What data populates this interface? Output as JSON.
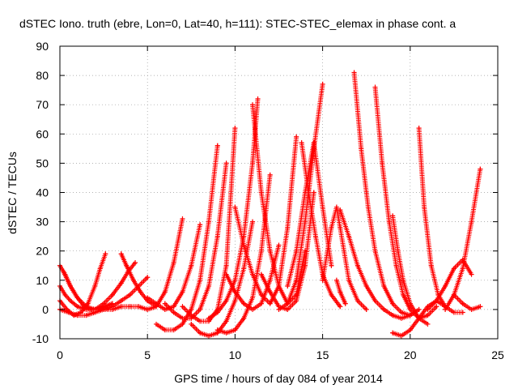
{
  "chart_data": {
    "type": "scatter",
    "title": "dSTEC Iono. truth (ebre, Lon=0, Lat=40, h=111): STEC-STEC_elemax in phase cont. a",
    "xlabel": "GPS time / hours of day 084 of year 2014",
    "ylabel": "dSTEC  / TECUs",
    "xlim": [
      0,
      25
    ],
    "ylim": [
      -10,
      90
    ],
    "x_ticks": [
      "0",
      "5",
      "10",
      "15",
      "20",
      "25"
    ],
    "y_ticks": [
      "-10",
      "0",
      "10",
      "20",
      "30",
      "40",
      "50",
      "60",
      "70",
      "80",
      "90"
    ],
    "grid": true,
    "legend": "none",
    "marker": "plus",
    "color": "#ff0000",
    "series": [
      {
        "x": [
          0.0,
          0.4,
          0.8,
          1.2,
          1.6,
          2.0,
          2.3,
          2.6
        ],
        "y": [
          3,
          0,
          -2,
          -1,
          2,
          8,
          14,
          19
        ]
      },
      {
        "x": [
          0.0,
          0.3,
          0.6,
          1.0,
          1.4,
          1.8,
          2.2,
          2.6,
          3.0
        ],
        "y": [
          15,
          12,
          8,
          4,
          1,
          0,
          0,
          1,
          2
        ]
      },
      {
        "x": [
          0.0,
          0.3,
          0.6,
          1.0,
          1.5,
          2.0,
          2.5,
          3.0
        ],
        "y": [
          8,
          5,
          3,
          1,
          0,
          0,
          1,
          2
        ]
      },
      {
        "x": [
          0.2,
          0.6,
          1.0,
          1.5,
          2.0,
          2.5,
          3.0,
          3.5,
          4.0
        ],
        "y": [
          13,
          8,
          4,
          1,
          0,
          0,
          0,
          1,
          1
        ]
      },
      {
        "x": [
          0.0,
          0.5,
          1.0,
          1.5,
          2.0,
          2.5,
          3.0,
          3.5,
          4.0,
          4.5,
          5.0
        ],
        "y": [
          0,
          -1,
          -2,
          -2,
          -1,
          0,
          1,
          3,
          5,
          8,
          11
        ]
      },
      {
        "x": [
          2.0,
          2.5,
          3.0,
          3.5,
          3.9,
          4.3
        ],
        "y": [
          0,
          2,
          5,
          9,
          13,
          16
        ]
      },
      {
        "x": [
          3.5,
          3.8,
          4.2,
          4.6,
          5.0,
          5.5
        ],
        "y": [
          19,
          15,
          10,
          6,
          3,
          1
        ]
      },
      {
        "x": [
          4.0,
          4.5,
          5.0,
          5.5,
          6.0,
          6.5,
          7.0
        ],
        "y": [
          1,
          1,
          0,
          1,
          6,
          16,
          31
        ]
      },
      {
        "x": [
          5.0,
          5.5,
          6.0,
          6.5,
          7.0,
          7.5,
          8.0
        ],
        "y": [
          4,
          2,
          0,
          1,
          6,
          15,
          29
        ]
      },
      {
        "x": [
          5.5,
          6.0,
          6.5,
          7.0,
          7.5,
          8.0,
          8.5,
          9.0
        ],
        "y": [
          -5,
          -7,
          -7,
          -5,
          0,
          10,
          30,
          56
        ]
      },
      {
        "x": [
          6.0,
          6.5,
          7.0,
          7.5,
          8.0,
          8.5,
          9.0,
          9.5
        ],
        "y": [
          2,
          -1,
          -3,
          -3,
          0,
          8,
          25,
          50
        ]
      },
      {
        "x": [
          7.0,
          7.5,
          8.0,
          8.5,
          9.0,
          9.5,
          10.0
        ],
        "y": [
          1,
          -2,
          -4,
          -4,
          0,
          15,
          62
        ]
      },
      {
        "x": [
          7.5,
          8.0,
          8.5,
          9.0,
          9.5,
          10.0,
          10.5,
          11.0
        ],
        "y": [
          -5,
          -8,
          -9,
          -8,
          -4,
          3,
          14,
          30
        ]
      },
      {
        "x": [
          8.5,
          9.0,
          9.5,
          10.0,
          10.5,
          11.0,
          11.3
        ],
        "y": [
          -3,
          -1,
          3,
          10,
          25,
          50,
          72
        ]
      },
      {
        "x": [
          9.0,
          9.5,
          10.0,
          10.5,
          11.0,
          11.5,
          12.0
        ],
        "y": [
          -7,
          -8,
          -7,
          -3,
          4,
          20,
          46
        ]
      },
      {
        "x": [
          9.5,
          10.0,
          10.5,
          11.0,
          11.5,
          12.0,
          12.5
        ],
        "y": [
          12,
          6,
          2,
          0,
          2,
          10,
          22
        ]
      },
      {
        "x": [
          10.0,
          10.5,
          11.0,
          11.5,
          12.0,
          12.5,
          13.0,
          13.5
        ],
        "y": [
          35,
          22,
          12,
          5,
          2,
          8,
          28,
          59
        ]
      },
      {
        "x": [
          11.0,
          11.5,
          12.0,
          12.5,
          13.0,
          13.5,
          14.0
        ],
        "y": [
          70,
          40,
          20,
          8,
          2,
          5,
          20
        ]
      },
      {
        "x": [
          11.5,
          12.0,
          12.5,
          13.0,
          13.5,
          14.0,
          14.5
        ],
        "y": [
          12,
          6,
          1,
          0,
          3,
          15,
          40
        ]
      },
      {
        "x": [
          12.5,
          13.0,
          13.5,
          14.0,
          14.5,
          15.0
        ],
        "y": [
          0,
          2,
          10,
          30,
          55,
          77
        ]
      },
      {
        "x": [
          13.0,
          13.5,
          14.0,
          14.5,
          15.0,
          15.5
        ],
        "y": [
          8,
          20,
          40,
          57,
          35,
          15
        ]
      },
      {
        "x": [
          13.8,
          14.2,
          14.6,
          15.0,
          15.5,
          16.0
        ],
        "y": [
          57,
          40,
          25,
          12,
          5,
          1
        ]
      },
      {
        "x": [
          15.0,
          15.5,
          15.8,
          16.0,
          16.5,
          17.0,
          17.5
        ],
        "y": [
          10,
          28,
          35,
          28,
          10,
          3,
          0
        ]
      },
      {
        "x": [
          15.8,
          16.0,
          16.3
        ],
        "y": [
          10,
          6,
          2
        ]
      },
      {
        "x": [
          16.0,
          16.5,
          17.0,
          17.5,
          18.0,
          18.5,
          19.0,
          19.5,
          20.0
        ],
        "y": [
          34,
          25,
          15,
          8,
          3,
          0,
          -2,
          -3,
          -2
        ]
      },
      {
        "x": [
          16.8,
          17.2,
          17.6,
          18.0,
          18.5,
          19.0,
          19.5,
          20.0,
          20.5
        ],
        "y": [
          81,
          55,
          35,
          20,
          8,
          2,
          -1,
          -2,
          0
        ]
      },
      {
        "x": [
          18.0,
          18.4,
          18.8,
          19.2,
          19.6,
          20.0,
          20.5,
          21.0
        ],
        "y": [
          76,
          50,
          30,
          15,
          5,
          0,
          -3,
          -5
        ]
      },
      {
        "x": [
          19.0,
          19.3,
          19.6,
          20.0,
          20.5,
          21.0,
          21.5
        ],
        "y": [
          32,
          20,
          10,
          2,
          -3,
          -2,
          1
        ]
      },
      {
        "x": [
          19.0,
          19.5,
          20.0,
          20.5,
          21.0,
          21.5,
          22.0
        ],
        "y": [
          -8,
          -9,
          -7,
          -3,
          1,
          3,
          1
        ]
      },
      {
        "x": [
          20.5,
          20.8,
          21.2,
          21.6,
          22.0,
          22.5,
          23.0
        ],
        "y": [
          62,
          35,
          15,
          5,
          1,
          -1,
          -1
        ]
      },
      {
        "x": [
          21.0,
          21.5,
          22.0,
          22.5,
          23.0,
          23.5
        ],
        "y": [
          0,
          3,
          8,
          14,
          17,
          12
        ]
      },
      {
        "x": [
          22.0,
          22.5,
          23.0,
          23.5,
          24.0
        ],
        "y": [
          0,
          5,
          14,
          30,
          48
        ]
      },
      {
        "x": [
          22.5,
          23.0,
          23.5,
          24.0
        ],
        "y": [
          5,
          2,
          0,
          1
        ]
      }
    ]
  }
}
